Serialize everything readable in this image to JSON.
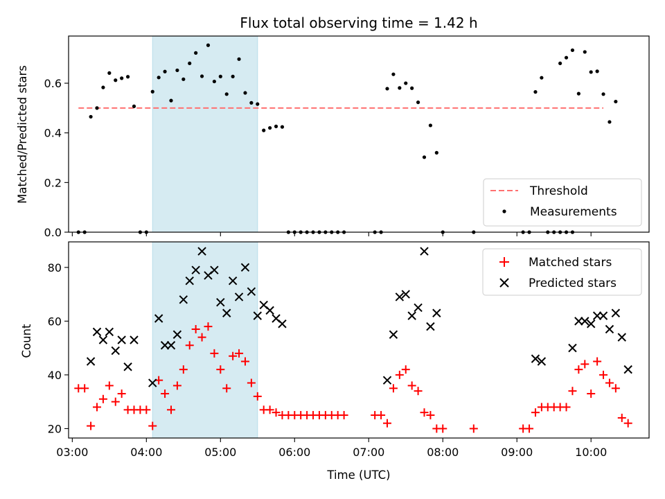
{
  "chart_data": [
    {
      "type": "scatter",
      "title": "Flux total observing time = 1.42 h",
      "ylabel": "Matched/Predicted stars",
      "xlabel": "",
      "ylim": [
        0,
        0.79
      ],
      "xlim": [
        "02:57",
        "10:47"
      ],
      "y_ticks": [
        "0.0",
        "0.2",
        "0.4",
        "0.6"
      ],
      "highlight_span": {
        "start": "04:05",
        "end": "05:30",
        "color": "#add8e6"
      },
      "threshold": {
        "name": "Threshold",
        "value": 0.5,
        "x_start": "03:05",
        "x_end": "10:10",
        "color": "#ff7070"
      },
      "legend_position": "lower right",
      "series": [
        {
          "name": "Measurements",
          "color": "#000000",
          "points": [
            [
              "03:05",
              0.0
            ],
            [
              "03:10",
              0.0
            ],
            [
              "03:15",
              0.465
            ],
            [
              "03:20",
              0.5
            ],
            [
              "03:25",
              0.583
            ],
            [
              "03:30",
              0.641
            ],
            [
              "03:35",
              0.612
            ],
            [
              "03:40",
              0.62
            ],
            [
              "03:45",
              0.626
            ],
            [
              "03:50",
              0.507
            ],
            [
              "03:55",
              0.0
            ],
            [
              "04:00",
              0.0
            ],
            [
              "04:05",
              0.566
            ],
            [
              "04:10",
              0.623
            ],
            [
              "04:15",
              0.647
            ],
            [
              "04:20",
              0.53
            ],
            [
              "04:25",
              0.652
            ],
            [
              "04:30",
              0.616
            ],
            [
              "04:35",
              0.68
            ],
            [
              "04:40",
              0.722
            ],
            [
              "04:45",
              0.628
            ],
            [
              "04:50",
              0.753
            ],
            [
              "04:55",
              0.607
            ],
            [
              "05:00",
              0.627
            ],
            [
              "05:05",
              0.556
            ],
            [
              "05:10",
              0.627
            ],
            [
              "05:15",
              0.697
            ],
            [
              "05:20",
              0.561
            ],
            [
              "05:25",
              0.521
            ],
            [
              "05:30",
              0.516
            ],
            [
              "05:35",
              0.41
            ],
            [
              "05:40",
              0.42
            ],
            [
              "05:45",
              0.426
            ],
            [
              "05:50",
              0.424
            ],
            [
              "05:55",
              0.0
            ],
            [
              "06:00",
              0.0
            ],
            [
              "06:05",
              0.0
            ],
            [
              "06:10",
              0.0
            ],
            [
              "06:15",
              0.0
            ],
            [
              "06:20",
              0.0
            ],
            [
              "06:25",
              0.0
            ],
            [
              "06:30",
              0.0
            ],
            [
              "06:35",
              0.0
            ],
            [
              "06:40",
              0.0
            ],
            [
              "07:05",
              0.0
            ],
            [
              "07:10",
              0.0
            ],
            [
              "07:15",
              0.578
            ],
            [
              "07:20",
              0.636
            ],
            [
              "07:25",
              0.581
            ],
            [
              "07:30",
              0.6
            ],
            [
              "07:35",
              0.58
            ],
            [
              "07:40",
              0.523
            ],
            [
              "07:45",
              0.302
            ],
            [
              "07:50",
              0.43
            ],
            [
              "07:55",
              0.32
            ],
            [
              "08:00",
              0.0
            ],
            [
              "08:25",
              0.0
            ],
            [
              "09:05",
              0.0
            ],
            [
              "09:10",
              0.0
            ],
            [
              "09:15",
              0.565
            ],
            [
              "09:20",
              0.622
            ],
            [
              "09:25",
              0.0
            ],
            [
              "09:30",
              0.0
            ],
            [
              "09:35",
              0.0
            ],
            [
              "09:40",
              0.0
            ],
            [
              "09:45",
              0.0
            ],
            [
              "09:35",
              0.68
            ],
            [
              "09:40",
              0.703
            ],
            [
              "09:45",
              0.733
            ],
            [
              "09:50",
              0.558
            ],
            [
              "09:55",
              0.726
            ],
            [
              "10:00",
              0.645
            ],
            [
              "10:05",
              0.648
            ],
            [
              "10:10",
              0.556
            ],
            [
              "10:15",
              0.444
            ],
            [
              "10:20",
              0.526
            ]
          ]
        }
      ]
    },
    {
      "type": "scatter",
      "title": "",
      "xlabel": "Time (UTC)",
      "ylabel": "Count",
      "ylim": [
        16.5,
        89.5
      ],
      "xlim": [
        "02:57",
        "10:47"
      ],
      "x_ticks": [
        "03:00",
        "04:00",
        "05:00",
        "06:00",
        "07:00",
        "08:00",
        "09:00",
        "10:00"
      ],
      "y_ticks": [
        "20",
        "40",
        "60",
        "80"
      ],
      "highlight_span": {
        "start": "04:05",
        "end": "05:30",
        "color": "#add8e6"
      },
      "legend_position": "upper right",
      "series": [
        {
          "name": "Matched stars",
          "marker": "+",
          "color": "#ff0000",
          "points": [
            [
              "03:05",
              35
            ],
            [
              "03:10",
              35
            ],
            [
              "03:15",
              21
            ],
            [
              "03:20",
              28
            ],
            [
              "03:25",
              31
            ],
            [
              "03:30",
              36
            ],
            [
              "03:35",
              30
            ],
            [
              "03:40",
              33
            ],
            [
              "03:45",
              27
            ],
            [
              "03:50",
              27
            ],
            [
              "03:55",
              27
            ],
            [
              "04:00",
              27
            ],
            [
              "04:05",
              21
            ],
            [
              "04:10",
              38
            ],
            [
              "04:15",
              33
            ],
            [
              "04:20",
              27
            ],
            [
              "04:25",
              36
            ],
            [
              "04:30",
              42
            ],
            [
              "04:35",
              51
            ],
            [
              "04:40",
              57
            ],
            [
              "04:45",
              54
            ],
            [
              "04:50",
              58
            ],
            [
              "04:55",
              48
            ],
            [
              "05:00",
              42
            ],
            [
              "05:05",
              35
            ],
            [
              "05:10",
              47
            ],
            [
              "05:15",
              48
            ],
            [
              "05:20",
              45
            ],
            [
              "05:25",
              37
            ],
            [
              "05:30",
              32
            ],
            [
              "05:35",
              27
            ],
            [
              "05:40",
              27
            ],
            [
              "05:45",
              26
            ],
            [
              "05:50",
              25
            ],
            [
              "05:55",
              25
            ],
            [
              "06:00",
              25
            ],
            [
              "06:05",
              25
            ],
            [
              "06:10",
              25
            ],
            [
              "06:15",
              25
            ],
            [
              "06:20",
              25
            ],
            [
              "06:25",
              25
            ],
            [
              "06:30",
              25
            ],
            [
              "06:35",
              25
            ],
            [
              "06:40",
              25
            ],
            [
              "07:05",
              25
            ],
            [
              "07:10",
              25
            ],
            [
              "07:15",
              22
            ],
            [
              "07:20",
              35
            ],
            [
              "07:25",
              40
            ],
            [
              "07:30",
              42
            ],
            [
              "07:35",
              36
            ],
            [
              "07:40",
              34
            ],
            [
              "07:45",
              26
            ],
            [
              "07:50",
              25
            ],
            [
              "07:55",
              20
            ],
            [
              "08:00",
              20
            ],
            [
              "08:25",
              20
            ],
            [
              "09:05",
              20
            ],
            [
              "09:10",
              20
            ],
            [
              "09:15",
              26
            ],
            [
              "09:20",
              28
            ],
            [
              "09:25",
              28
            ],
            [
              "09:30",
              28
            ],
            [
              "09:35",
              28
            ],
            [
              "09:40",
              28
            ],
            [
              "09:45",
              34
            ],
            [
              "09:50",
              42
            ],
            [
              "09:55",
              44
            ],
            [
              "10:00",
              33
            ],
            [
              "10:05",
              45
            ],
            [
              "10:10",
              40
            ],
            [
              "10:15",
              37
            ],
            [
              "10:20",
              35
            ],
            [
              "10:25",
              24
            ],
            [
              "10:30",
              22
            ]
          ]
        },
        {
          "name": "Predicted stars",
          "marker": "x",
          "color": "#000000",
          "points": [
            [
              "03:15",
              45
            ],
            [
              "03:20",
              56
            ],
            [
              "03:25",
              53
            ],
            [
              "03:30",
              56
            ],
            [
              "03:35",
              49
            ],
            [
              "03:40",
              53
            ],
            [
              "03:45",
              43
            ],
            [
              "03:50",
              53
            ],
            [
              "04:05",
              37
            ],
            [
              "04:10",
              61
            ],
            [
              "04:15",
              51
            ],
            [
              "04:20",
              51
            ],
            [
              "04:25",
              55
            ],
            [
              "04:30",
              68
            ],
            [
              "04:35",
              75
            ],
            [
              "04:40",
              79
            ],
            [
              "04:45",
              86
            ],
            [
              "04:50",
              77
            ],
            [
              "04:55",
              79
            ],
            [
              "05:00",
              67
            ],
            [
              "05:05",
              63
            ],
            [
              "05:10",
              75
            ],
            [
              "05:15",
              69
            ],
            [
              "05:20",
              80
            ],
            [
              "05:25",
              71
            ],
            [
              "05:30",
              62
            ],
            [
              "05:35",
              66
            ],
            [
              "05:40",
              64
            ],
            [
              "05:45",
              61
            ],
            [
              "05:50",
              59
            ],
            [
              "07:15",
              38
            ],
            [
              "07:20",
              55
            ],
            [
              "07:25",
              69
            ],
            [
              "07:30",
              70
            ],
            [
              "07:35",
              62
            ],
            [
              "07:40",
              65
            ],
            [
              "07:45",
              86
            ],
            [
              "07:50",
              58
            ],
            [
              "07:55",
              63
            ],
            [
              "09:15",
              46
            ],
            [
              "09:20",
              45
            ],
            [
              "09:45",
              50
            ],
            [
              "09:50",
              60
            ],
            [
              "09:55",
              60
            ],
            [
              "10:00",
              59
            ],
            [
              "10:05",
              62
            ],
            [
              "10:10",
              62
            ],
            [
              "10:15",
              57
            ],
            [
              "10:20",
              63
            ],
            [
              "10:25",
              54
            ],
            [
              "10:30",
              42
            ]
          ]
        }
      ]
    }
  ]
}
